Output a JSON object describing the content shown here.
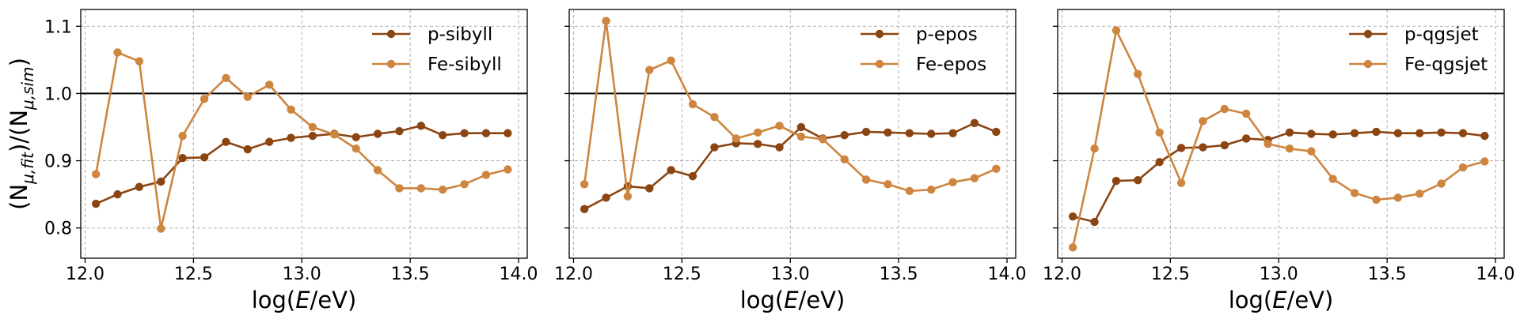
{
  "chart_data": [
    {
      "type": "line",
      "ylabel": "(N_{μ,fit})/(N_{μ,sim})",
      "xlabel": "log(E/eV)",
      "xlim": [
        11.98,
        14.04
      ],
      "ylim": [
        0.755,
        1.125
      ],
      "xticks": [
        "12.0",
        "12.5",
        "13.0",
        "13.5",
        "14.0"
      ],
      "yticks": [
        "0.8",
        "0.9",
        "1.0",
        "1.1"
      ],
      "reference_line": 1.0,
      "grid": true,
      "legend_position": "top-right",
      "x": [
        12.05,
        12.15,
        12.25,
        12.35,
        12.45,
        12.55,
        12.65,
        12.75,
        12.85,
        12.95,
        13.05,
        13.15,
        13.25,
        13.35,
        13.45,
        13.55,
        13.65,
        13.75,
        13.85,
        13.95
      ],
      "series": [
        {
          "name": "p-sibyll",
          "color": "#8b4513",
          "values": [
            0.836,
            0.85,
            0.861,
            0.869,
            0.904,
            0.905,
            0.928,
            0.917,
            0.928,
            0.934,
            0.937,
            0.94,
            0.935,
            0.94,
            0.944,
            0.952,
            0.938,
            0.941,
            0.941,
            0.941
          ]
        },
        {
          "name": "Fe-sibyll",
          "color": "#cd853f",
          "values": [
            0.88,
            1.061,
            1.048,
            0.799,
            0.937,
            0.992,
            1.023,
            0.995,
            1.013,
            0.976,
            0.95,
            0.939,
            0.918,
            0.886,
            0.859,
            0.859,
            0.857,
            0.865,
            0.879,
            0.887
          ]
        }
      ]
    },
    {
      "type": "line",
      "xlabel": "log(E/eV)",
      "xlim": [
        11.98,
        14.04
      ],
      "ylim": [
        0.755,
        1.125
      ],
      "xticks": [
        "12.0",
        "12.5",
        "13.0",
        "13.5",
        "14.0"
      ],
      "reference_line": 1.0,
      "grid": true,
      "legend_position": "top-right",
      "x": [
        12.05,
        12.15,
        12.25,
        12.35,
        12.45,
        12.55,
        12.65,
        12.75,
        12.85,
        12.95,
        13.05,
        13.15,
        13.25,
        13.35,
        13.45,
        13.55,
        13.65,
        13.75,
        13.85,
        13.95
      ],
      "series": [
        {
          "name": "p-epos",
          "color": "#8b4513",
          "values": [
            0.828,
            0.845,
            0.862,
            0.859,
            0.886,
            0.877,
            0.92,
            0.926,
            0.925,
            0.92,
            0.95,
            0.933,
            0.938,
            0.943,
            0.942,
            0.941,
            0.94,
            0.941,
            0.956,
            0.943
          ]
        },
        {
          "name": "Fe-epos",
          "color": "#cd853f",
          "values": [
            0.865,
            1.108,
            0.847,
            1.035,
            1.049,
            0.984,
            0.965,
            0.933,
            0.942,
            0.952,
            0.936,
            0.932,
            0.902,
            0.872,
            0.865,
            0.855,
            0.857,
            0.868,
            0.874,
            0.888
          ]
        }
      ]
    },
    {
      "type": "line",
      "xlabel": "log(E/eV)",
      "xlim": [
        11.98,
        14.04
      ],
      "ylim": [
        0.755,
        1.125
      ],
      "xticks": [
        "12.0",
        "12.5",
        "13.0",
        "13.5",
        "14.0"
      ],
      "reference_line": 1.0,
      "grid": true,
      "legend_position": "top-right",
      "x": [
        12.05,
        12.15,
        12.25,
        12.35,
        12.45,
        12.55,
        12.65,
        12.75,
        12.85,
        12.95,
        13.05,
        13.15,
        13.25,
        13.35,
        13.45,
        13.55,
        13.65,
        13.75,
        13.85,
        13.95
      ],
      "series": [
        {
          "name": "p-qgsjet",
          "color": "#8b4513",
          "values": [
            0.817,
            0.809,
            0.87,
            0.871,
            0.898,
            0.919,
            0.92,
            0.923,
            0.933,
            0.931,
            0.942,
            0.94,
            0.939,
            0.941,
            0.943,
            0.941,
            0.941,
            0.942,
            0.941,
            0.937
          ]
        },
        {
          "name": "Fe-qgsjet",
          "color": "#cd853f",
          "values": [
            0.771,
            0.918,
            1.094,
            1.029,
            0.942,
            0.867,
            0.959,
            0.977,
            0.97,
            0.925,
            0.918,
            0.914,
            0.873,
            0.852,
            0.842,
            0.845,
            0.851,
            0.866,
            0.89,
            0.899
          ]
        }
      ]
    }
  ]
}
